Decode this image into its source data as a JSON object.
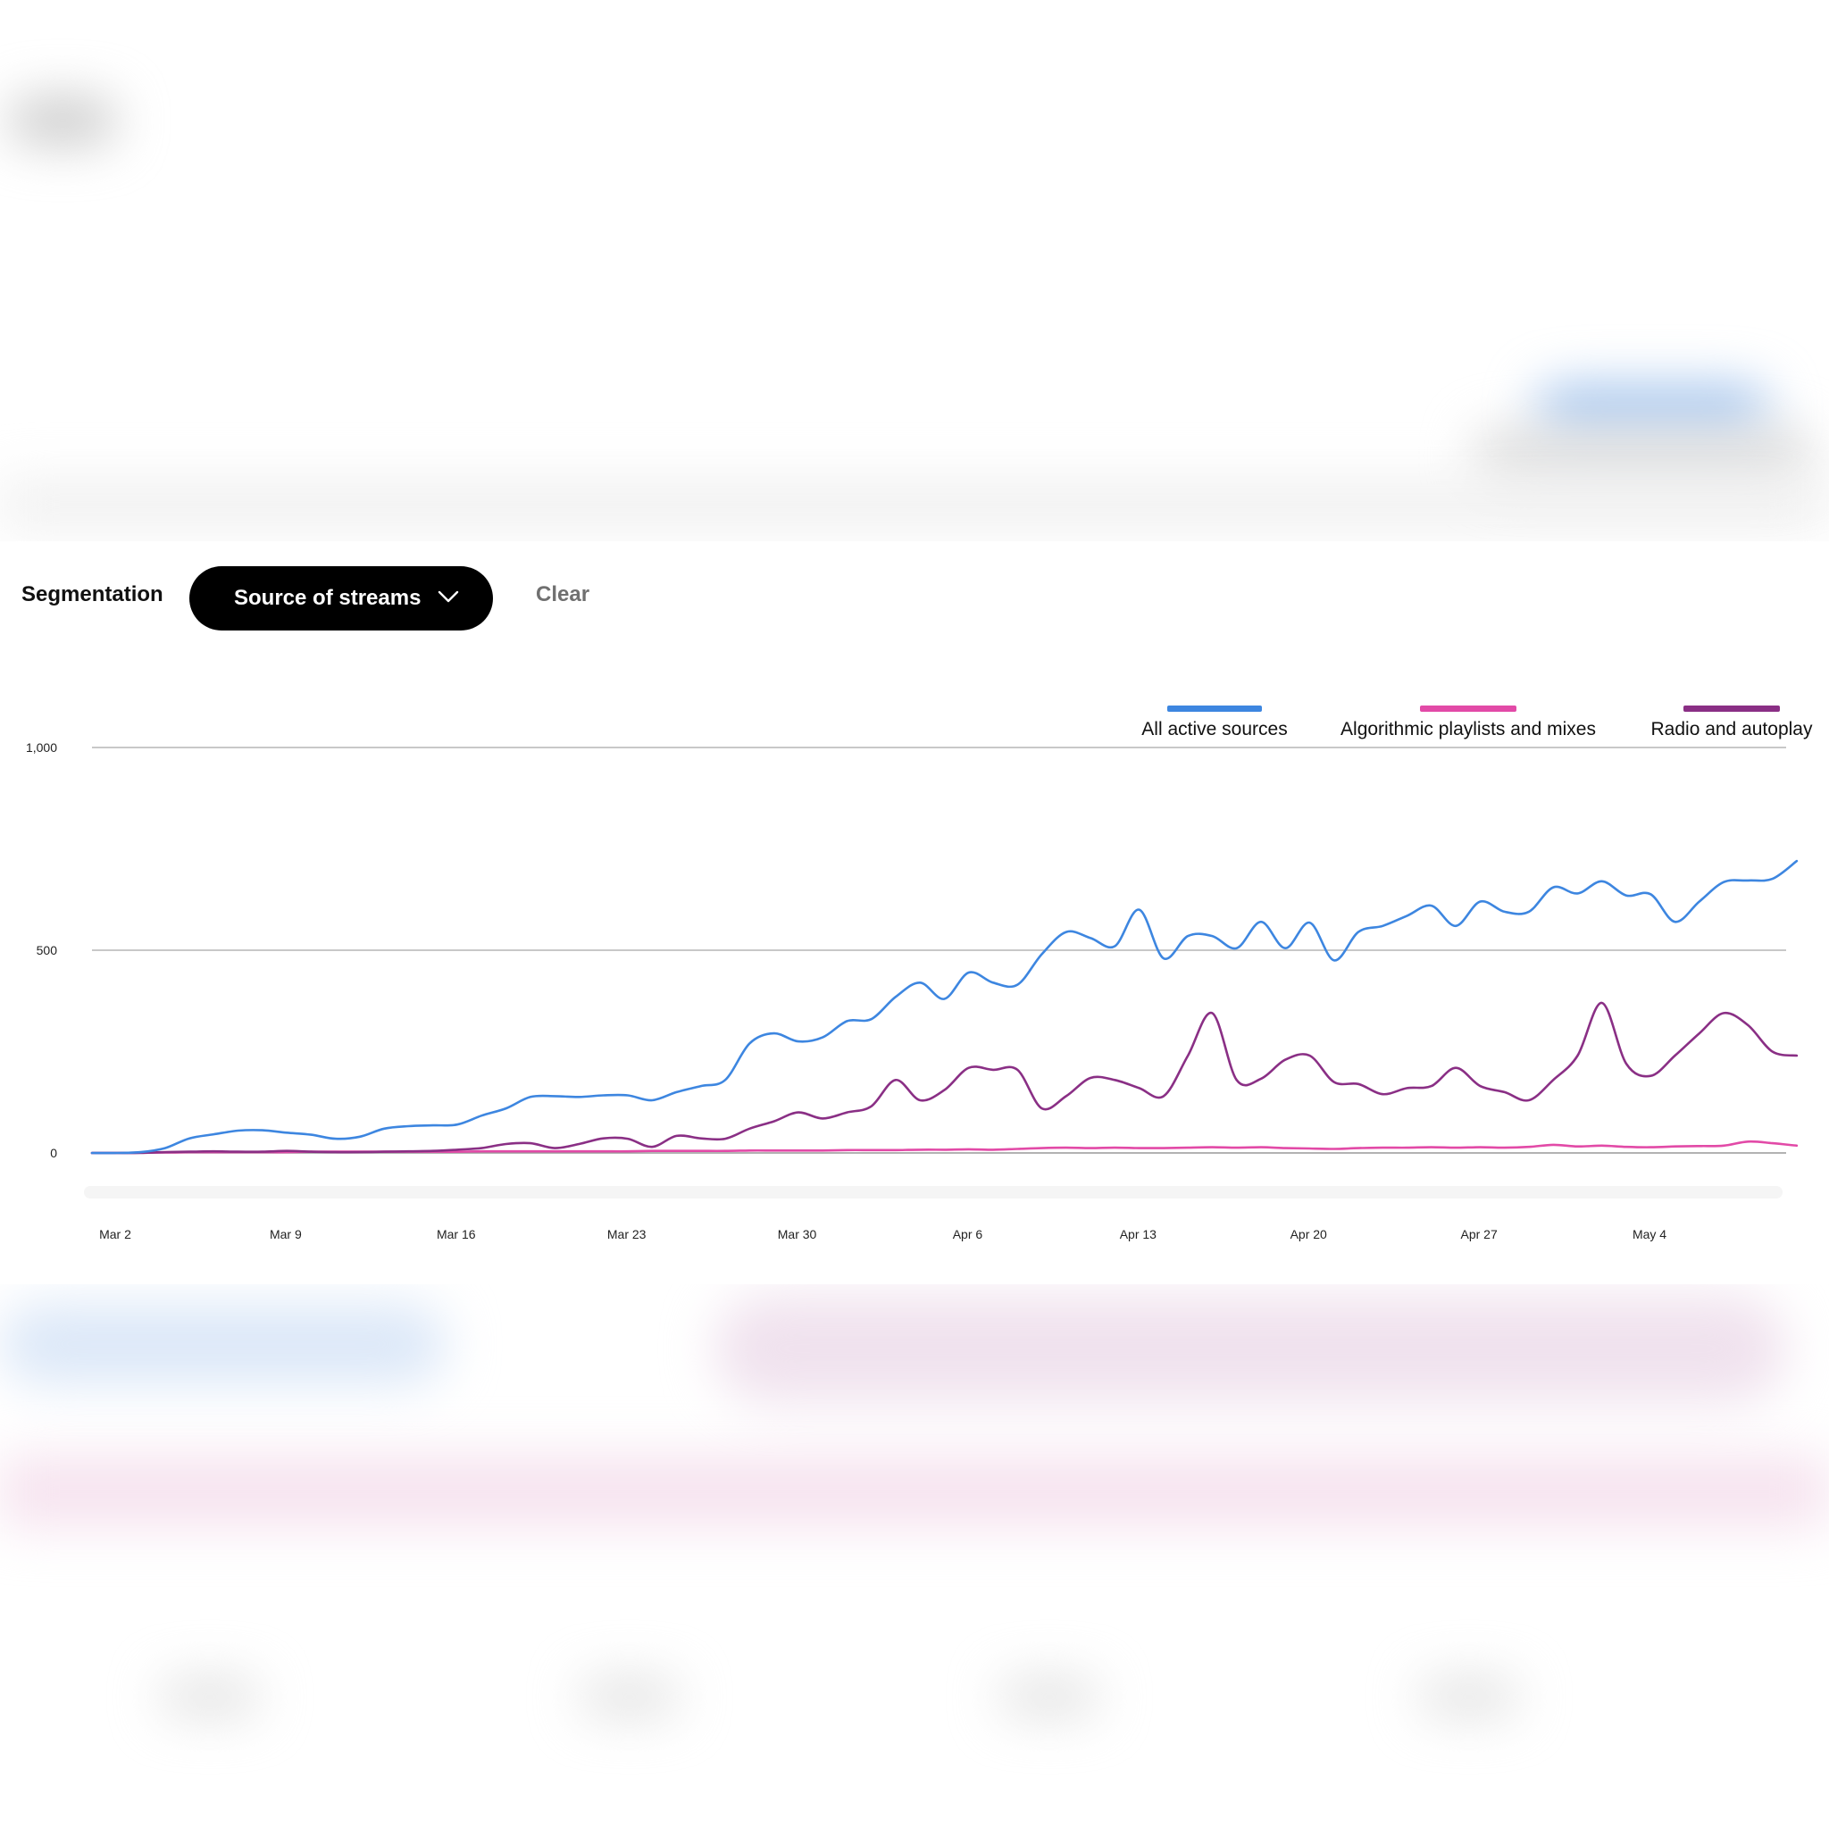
{
  "segmentation": {
    "label": "Segmentation",
    "dropdown_value": "Source of streams",
    "clear_label": "Clear"
  },
  "colors": {
    "all": "#3d86e0",
    "algorithmic": "#e24aa7",
    "radio": "#8a2f85"
  },
  "chart_data": {
    "type": "line",
    "x_start": "Mar 2",
    "y_ticks": [
      "0",
      "500",
      "1,000"
    ],
    "x_ticks": [
      "Mar 2",
      "Mar 9",
      "Mar 16",
      "Mar 23",
      "Mar 30",
      "Apr 6",
      "Apr 13",
      "Apr 20",
      "Apr 27",
      "May 4"
    ],
    "ylim": [
      0,
      1000
    ],
    "grid": true,
    "legend_position": "top-right",
    "series": [
      {
        "name": "All active sources",
        "color": "#3d86e0",
        "values": [
          0,
          0,
          2,
          12,
          36,
          46,
          55,
          56,
          50,
          45,
          35,
          40,
          60,
          66,
          68,
          70,
          92,
          110,
          138,
          140,
          138,
          142,
          142,
          130,
          150,
          165,
          180,
          270,
          295,
          275,
          285,
          325,
          330,
          385,
          420,
          380,
          445,
          420,
          415,
          490,
          545,
          530,
          510,
          600,
          480,
          535,
          535,
          505,
          570,
          505,
          568,
          475,
          545,
          560,
          585,
          610,
          560,
          620,
          595,
          595,
          655,
          640,
          670,
          635,
          638,
          570,
          620,
          668,
          672,
          676,
          720
        ]
      },
      {
        "name": "Algorithmic playlists and mixes",
        "color": "#e24aa7",
        "values": [
          0,
          0,
          1,
          1,
          2,
          2,
          2,
          2,
          2,
          3,
          3,
          3,
          3,
          3,
          3,
          3,
          4,
          4,
          4,
          4,
          4,
          4,
          4,
          5,
          5,
          5,
          5,
          6,
          6,
          6,
          6,
          7,
          7,
          7,
          8,
          8,
          9,
          8,
          10,
          12,
          13,
          12,
          13,
          12,
          12,
          13,
          14,
          13,
          14,
          12,
          11,
          10,
          12,
          13,
          13,
          14,
          13,
          14,
          13,
          15,
          20,
          16,
          18,
          15,
          14,
          16,
          17,
          18,
          28,
          24,
          18
        ]
      },
      {
        "name": "Radio and autoplay",
        "color": "#8a2f85",
        "values": [
          0,
          0,
          0,
          2,
          3,
          4,
          3,
          3,
          5,
          3,
          2,
          2,
          3,
          4,
          5,
          8,
          12,
          22,
          24,
          12,
          22,
          36,
          35,
          15,
          42,
          36,
          35,
          60,
          78,
          100,
          85,
          100,
          115,
          180,
          130,
          155,
          210,
          205,
          205,
          110,
          140,
          185,
          180,
          160,
          140,
          240,
          345,
          180,
          183,
          230,
          240,
          175,
          170,
          145,
          160,
          165,
          210,
          165,
          150,
          130,
          180,
          240,
          370,
          220,
          190,
          240,
          295,
          345,
          315,
          250,
          240
        ]
      }
    ]
  }
}
